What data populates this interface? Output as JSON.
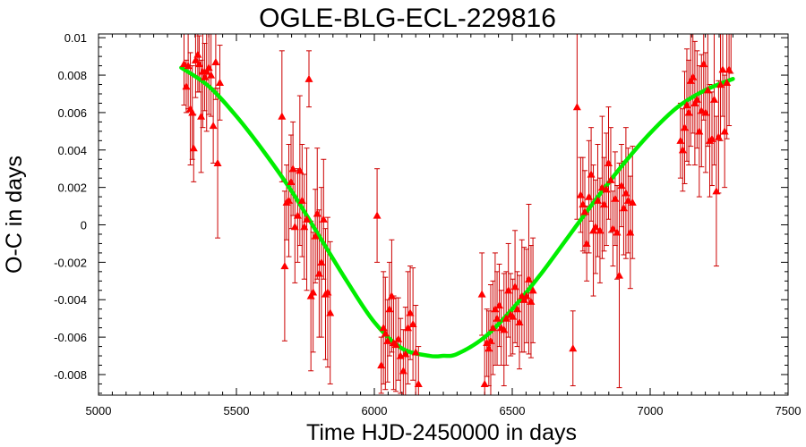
{
  "chart_data": {
    "type": "scatter",
    "title": "OGLE-BLG-ECL-229816",
    "xlabel": "Time HJD-2450000 in days",
    "ylabel": "O-C in days",
    "xlim": [
      5000,
      7500
    ],
    "ylim": [
      -0.0091,
      0.0102
    ],
    "x_ticks": [
      5000,
      5500,
      6000,
      6500,
      7000,
      7500
    ],
    "x_tick_labels": [
      "5000",
      "5500",
      "6000",
      "6500",
      "7000",
      "7500"
    ],
    "y_ticks": [
      -0.008,
      -0.006,
      -0.004,
      -0.002,
      0,
      0.002,
      0.004,
      0.006,
      0.008,
      0.01
    ],
    "y_tick_labels": [
      "-0.008",
      "-0.006",
      "-0.004",
      "-0.002",
      "0",
      "0.002",
      "0.004",
      "0.006",
      "0.008",
      "0.01"
    ],
    "grid": false,
    "colors": {
      "points": "#ff0000",
      "error_bars": "#cc0000",
      "fit": "#00ee00",
      "axes": "#000000"
    },
    "fit_curve": {
      "x": [
        5300,
        5400,
        5500,
        5600,
        5700,
        5800,
        5900,
        6000,
        6100,
        6200,
        6250,
        6300,
        6400,
        6500,
        6600,
        6700,
        6800,
        6900,
        7000,
        7100,
        7200,
        7300
      ],
      "y": [
        0.0084,
        0.0074,
        0.0058,
        0.0039,
        0.0018,
        -0.0006,
        -0.003,
        -0.0052,
        -0.0066,
        -0.007,
        -0.007,
        -0.0069,
        -0.006,
        -0.0045,
        -0.0027,
        -0.0007,
        0.0013,
        0.0032,
        0.0049,
        0.0063,
        0.0072,
        0.0078
      ]
    },
    "series": [
      {
        "points": [
          [
            5310,
            0.0086,
            0.0022
          ],
          [
            5318,
            0.0074,
            0.0014
          ],
          [
            5325,
            0.0085,
            0.0023
          ],
          [
            5333,
            0.0062,
            0.003
          ],
          [
            5340,
            0.006,
            0.0025
          ],
          [
            5345,
            0.0041,
            0.0018
          ],
          [
            5352,
            0.0088,
            0.002
          ],
          [
            5360,
            0.0091,
            0.002
          ],
          [
            5365,
            0.0086,
            0.0015
          ],
          [
            5372,
            0.0058,
            0.003
          ],
          [
            5378,
            0.0082,
            0.003
          ],
          [
            5385,
            0.0079,
            0.0018
          ],
          [
            5392,
            0.0082,
            0.0032
          ],
          [
            5400,
            0.0084,
            0.0025
          ],
          [
            5408,
            0.008,
            0.0022
          ],
          [
            5416,
            0.0053,
            0.002
          ],
          [
            5425,
            0.0087,
            0.002
          ],
          [
            5432,
            0.0033,
            0.004
          ],
          [
            5440,
            0.0076,
            0.002
          ],
          [
            5665,
            0.0058,
            0.0035
          ],
          [
            5675,
            -0.0022,
            0.004
          ],
          [
            5682,
            0.0012,
            0.002
          ],
          [
            5690,
            0.0013,
            0.003
          ],
          [
            5698,
            0.0023,
            0.0025
          ],
          [
            5705,
            0.003,
            0.0025
          ],
          [
            5712,
            -0.0001,
            0.003
          ],
          [
            5722,
            0.0005,
            0.0025
          ],
          [
            5730,
            0.0029,
            0.004
          ],
          [
            5738,
            0.0013,
            0.003
          ],
          [
            5746,
            -0.0001,
            0.0028
          ],
          [
            5755,
            0.0003,
            0.0038
          ],
          [
            5763,
            0.0078,
            0.0015
          ],
          [
            5770,
            -0.0038,
            0.004
          ],
          [
            5778,
            -0.0036,
            0.0032
          ],
          [
            5786,
            -0.0006,
            0.0025
          ],
          [
            5793,
            0.0006,
            0.0035
          ],
          [
            5800,
            -0.0026,
            0.0034
          ],
          [
            5808,
            -0.002,
            0.004
          ],
          [
            5816,
            0.0003,
            0.0032
          ],
          [
            5823,
            -0.0037,
            0.0035
          ],
          [
            5831,
            -0.0036,
            0.004
          ],
          [
            5840,
            -0.0047,
            0.0038
          ],
          [
            6010,
            0.0005,
            0.0025
          ],
          [
            6025,
            -0.0075,
            0.0015
          ],
          [
            6033,
            -0.0055,
            0.003
          ],
          [
            6040,
            -0.0058,
            0.003
          ],
          [
            6048,
            -0.0062,
            0.0022
          ],
          [
            6055,
            -0.0045,
            0.0025
          ],
          [
            6063,
            -0.0038,
            0.003
          ],
          [
            6070,
            -0.0063,
            0.0025
          ],
          [
            6078,
            -0.0064,
            0.0025
          ],
          [
            6087,
            -0.0061,
            0.0022
          ],
          [
            6095,
            -0.007,
            0.002
          ],
          [
            6105,
            -0.0078,
            0.0022
          ],
          [
            6113,
            -0.0069,
            0.0025
          ],
          [
            6122,
            -0.0055,
            0.003
          ],
          [
            6130,
            -0.0047,
            0.0025
          ],
          [
            6140,
            -0.0053,
            0.003
          ],
          [
            6150,
            -0.0068,
            0.0025
          ],
          [
            6160,
            -0.0085,
            0.002
          ],
          [
            6390,
            -0.0037,
            0.0022
          ],
          [
            6400,
            -0.0085,
            0.0025
          ],
          [
            6408,
            -0.0063,
            0.0018
          ],
          [
            6415,
            -0.0066,
            0.002
          ],
          [
            6422,
            -0.0062,
            0.003
          ],
          [
            6430,
            -0.0055,
            0.0025
          ],
          [
            6438,
            -0.0045,
            0.003
          ],
          [
            6445,
            -0.005,
            0.0025
          ],
          [
            6453,
            -0.0043,
            0.0022
          ],
          [
            6460,
            -0.0055,
            0.002
          ],
          [
            6470,
            -0.0056,
            0.003
          ],
          [
            6478,
            -0.005,
            0.0025
          ],
          [
            6486,
            -0.0035,
            0.0025
          ],
          [
            6494,
            -0.0048,
            0.0022
          ],
          [
            6502,
            -0.0049,
            0.002
          ],
          [
            6510,
            -0.0033,
            0.003
          ],
          [
            6518,
            -0.0045,
            0.002
          ],
          [
            6526,
            -0.0052,
            0.0025
          ],
          [
            6535,
            -0.0038,
            0.003
          ],
          [
            6543,
            -0.004,
            0.0028
          ],
          [
            6552,
            -0.0038,
            0.0025
          ],
          [
            6560,
            -0.0029,
            0.004
          ],
          [
            6568,
            -0.0041,
            0.003
          ],
          [
            6575,
            -0.0035,
            0.0028
          ],
          [
            6720,
            -0.0066,
            0.002
          ],
          [
            6735,
            0.0063,
            0.006
          ],
          [
            6748,
            0.0016,
            0.002
          ],
          [
            6756,
            0.0011,
            0.0025
          ],
          [
            6763,
            0.0007,
            0.0022
          ],
          [
            6770,
            -0.001,
            0.002
          ],
          [
            6778,
            0.0015,
            0.003
          ],
          [
            6786,
            0.0027,
            0.0025
          ],
          [
            6794,
            -0.0003,
            0.0035
          ],
          [
            6802,
            -0.0001,
            0.0025
          ],
          [
            6810,
            0.0013,
            0.003
          ],
          [
            6818,
            -0.0003,
            0.0028
          ],
          [
            6826,
            0.002,
            0.0038
          ],
          [
            6833,
            0.0011,
            0.0025
          ],
          [
            6841,
            0.0019,
            0.003
          ],
          [
            6849,
            0.0033,
            0.003
          ],
          [
            6857,
            0.0024,
            0.0028
          ],
          [
            6865,
            -0.0002,
            0.002
          ],
          [
            6873,
            0.0014,
            0.0025
          ],
          [
            6880,
            -0.0004,
            0.0025
          ],
          [
            6888,
            -0.0027,
            0.006
          ],
          [
            6896,
            0.0021,
            0.0022
          ],
          [
            6904,
            0.0009,
            0.0025
          ],
          [
            6912,
            0.0017,
            0.0035
          ],
          [
            6920,
            0.0013,
            0.0028
          ],
          [
            6928,
            -0.0004,
            0.003
          ],
          [
            6936,
            0.0012,
            0.003
          ],
          [
            7110,
            0.0045,
            0.002
          ],
          [
            7118,
            0.004,
            0.0022
          ],
          [
            7125,
            0.0052,
            0.003
          ],
          [
            7133,
            0.0064,
            0.003
          ],
          [
            7140,
            0.006,
            0.0028
          ],
          [
            7147,
            0.0077,
            0.0035
          ],
          [
            7155,
            0.0079,
            0.003
          ],
          [
            7162,
            0.0065,
            0.0033
          ],
          [
            7170,
            0.0067,
            0.0026
          ],
          [
            7178,
            0.005,
            0.0035
          ],
          [
            7186,
            0.0061,
            0.003
          ],
          [
            7194,
            0.0086,
            0.003
          ],
          [
            7201,
            0.006,
            0.0032
          ],
          [
            7209,
            0.0072,
            0.003
          ],
          [
            7216,
            0.0045,
            0.003
          ],
          [
            7224,
            0.0046,
            0.0025
          ],
          [
            7232,
            0.0067,
            0.0035
          ],
          [
            7240,
            0.0018,
            0.004
          ],
          [
            7248,
            0.0047,
            0.003
          ],
          [
            7255,
            0.0075,
            0.003
          ],
          [
            7263,
            0.0083,
            0.0025
          ],
          [
            7270,
            0.005,
            0.003
          ],
          [
            7278,
            0.0076,
            0.003
          ],
          [
            7286,
            0.0083,
            0.003
          ],
          [
            7293,
            0.0103,
            0.0022
          ]
        ]
      }
    ]
  }
}
